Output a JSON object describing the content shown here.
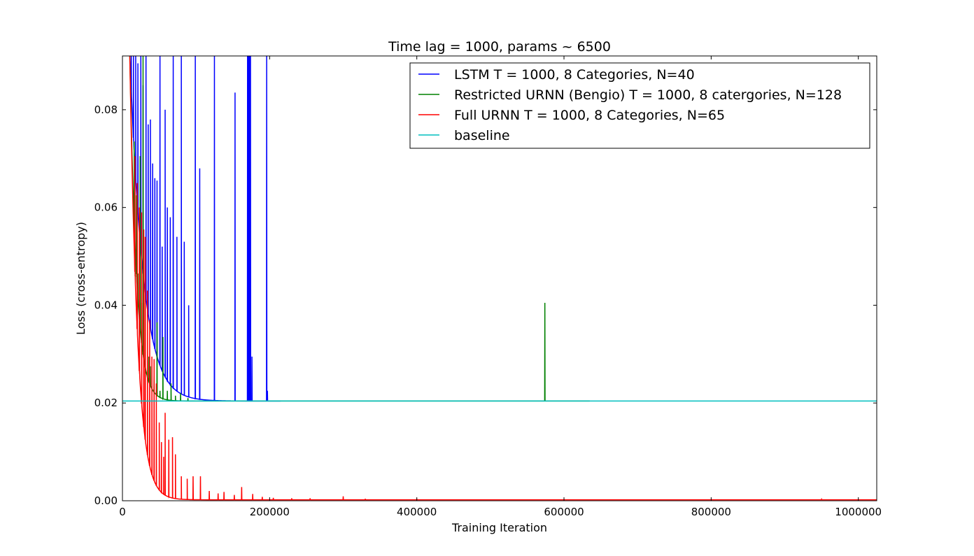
{
  "chart_data": {
    "type": "line",
    "title": "Time lag = 1000, params ~ 6500",
    "xlabel": "Training Iteration",
    "ylabel": "Loss (cross-entropy)",
    "xlim": [
      0,
      1025000
    ],
    "ylim": [
      0,
      0.091
    ],
    "x_ticks": [
      0,
      200000,
      400000,
      600000,
      800000,
      1000000
    ],
    "y_ticks": [
      0.0,
      0.02,
      0.04,
      0.06,
      0.08
    ],
    "grid": false,
    "legend_position": "top-right",
    "series": [
      {
        "name": "LSTM T = 1000, 8 Categories, N=40",
        "color": "#0000ff",
        "base": 0.0204,
        "initial": 0.0915,
        "decay": 18000,
        "decay_start": 10000,
        "end": 215000,
        "spikes": [
          [
            12000,
            0.091
          ],
          [
            15000,
            0.091
          ],
          [
            18000,
            0.091
          ],
          [
            21000,
            0.0895
          ],
          [
            25000,
            0.091
          ],
          [
            28000,
            0.085
          ],
          [
            32000,
            0.091
          ],
          [
            35000,
            0.077
          ],
          [
            38000,
            0.078
          ],
          [
            41000,
            0.069
          ],
          [
            44000,
            0.066
          ],
          [
            47000,
            0.0655
          ],
          [
            51000,
            0.091
          ],
          [
            54000,
            0.052
          ],
          [
            58000,
            0.08
          ],
          [
            61000,
            0.06
          ],
          [
            65000,
            0.058
          ],
          [
            69000,
            0.091
          ],
          [
            74000,
            0.054
          ],
          [
            80000,
            0.091
          ],
          [
            84000,
            0.053
          ],
          [
            90000,
            0.04
          ],
          [
            99000,
            0.091
          ],
          [
            105000,
            0.068
          ],
          [
            125000,
            0.091
          ],
          [
            153000,
            0.0835
          ],
          [
            170000,
            0.091
          ],
          [
            171000,
            0.091
          ],
          [
            172000,
            0.091
          ],
          [
            173000,
            0.091
          ],
          [
            174000,
            0.091
          ],
          [
            176000,
            0.0295
          ],
          [
            196000,
            0.091
          ],
          [
            197000,
            0.0225
          ]
        ]
      },
      {
        "name": "Restricted URNN (Bengio) T = 1000, 8 catergories, N=128",
        "color": "#008000",
        "base": 0.0204,
        "initial": 0.091,
        "decay": 9000,
        "decay_start": 10000,
        "end": 635000,
        "spikes": [
          [
            16000,
            0.0735
          ],
          [
            19000,
            0.0625
          ],
          [
            21000,
            0.0465
          ],
          [
            24000,
            0.0705
          ],
          [
            26000,
            0.0405
          ],
          [
            28000,
            0.091
          ],
          [
            31000,
            0.0405
          ],
          [
            34000,
            0.03
          ],
          [
            36000,
            0.0295
          ],
          [
            38000,
            0.0275
          ],
          [
            43000,
            0.0255
          ],
          [
            47000,
            0.0365
          ],
          [
            51000,
            0.0225
          ],
          [
            55000,
            0.0335
          ],
          [
            61000,
            0.0225
          ],
          [
            66000,
            0.024
          ],
          [
            72000,
            0.0215
          ],
          [
            79000,
            0.022
          ],
          [
            89000,
            0.021
          ],
          [
            574000,
            0.0405
          ]
        ]
      },
      {
        "name": "Full URNN T = 1000, 8 Categories, N=65",
        "color": "#ff0000",
        "base": 0.0002,
        "initial": 0.091,
        "decay": 10500,
        "decay_start": 10000,
        "end": 1025000,
        "spikes": [
          [
            17000,
            0.0705
          ],
          [
            20000,
            0.065
          ],
          [
            23000,
            0.06
          ],
          [
            26000,
            0.059
          ],
          [
            29000,
            0.0555
          ],
          [
            31000,
            0.054
          ],
          [
            34000,
            0.043
          ],
          [
            37000,
            0.037
          ],
          [
            40000,
            0.0295
          ],
          [
            43000,
            0.029
          ],
          [
            46000,
            0.024
          ],
          [
            50000,
            0.016
          ],
          [
            53000,
            0.012
          ],
          [
            56000,
            0.009
          ],
          [
            58000,
            0.018
          ],
          [
            63000,
            0.0125
          ],
          [
            68000,
            0.013
          ],
          [
            72000,
            0.0095
          ],
          [
            80000,
            0.005
          ],
          [
            88000,
            0.0045
          ],
          [
            96000,
            0.005
          ],
          [
            106000,
            0.005
          ],
          [
            118000,
            0.002
          ],
          [
            130000,
            0.0015
          ],
          [
            138000,
            0.0018
          ],
          [
            152000,
            0.0012
          ],
          [
            162000,
            0.0028
          ],
          [
            177000,
            0.0014
          ],
          [
            190000,
            0.0008
          ],
          [
            205000,
            0.0006
          ],
          [
            230000,
            0.0005
          ],
          [
            255000,
            0.0005
          ],
          [
            300000,
            0.0009
          ],
          [
            330000,
            0.0004
          ],
          [
            400000,
            0.0003
          ],
          [
            950000,
            0.0003
          ]
        ]
      },
      {
        "name": "baseline",
        "color": "#00bfbf",
        "constant": 0.0204,
        "start": 0,
        "end": 1025000
      }
    ]
  }
}
